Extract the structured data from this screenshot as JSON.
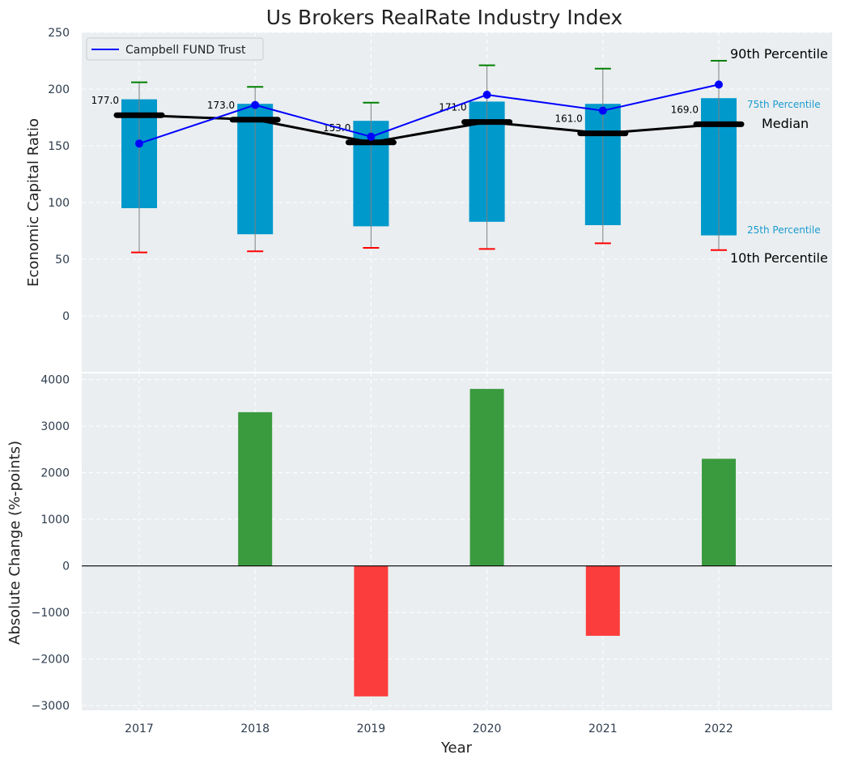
{
  "chart_data": [
    {
      "type": "box-percentile",
      "title": "Us Brokers RealRate Industry Index",
      "xlabel": "",
      "ylabel": "Economic Capital Ratio",
      "ylim": [
        -50,
        250
      ],
      "yticks": [
        0,
        50,
        100,
        150,
        200,
        250
      ],
      "categories": [
        "2017",
        "2018",
        "2019",
        "2020",
        "2021",
        "2022"
      ],
      "p10": [
        56,
        57,
        60,
        59,
        64,
        58
      ],
      "p25": [
        95,
        72,
        79,
        83,
        80,
        71
      ],
      "median": [
        177,
        173,
        153,
        171,
        161,
        169
      ],
      "median_labels": [
        "177.0",
        "173.0",
        "153.0",
        "171.0",
        "161.0",
        "169.0"
      ],
      "p75": [
        191,
        187,
        172,
        189,
        187,
        192
      ],
      "p90": [
        206,
        202,
        188,
        221,
        218,
        225
      ],
      "series": [
        {
          "name": "Campbell FUND Trust",
          "values": [
            152,
            186,
            158,
            195,
            181,
            204
          ],
          "color": "#0000ff"
        }
      ],
      "annotations": {
        "p90": "90th Percentile",
        "p75": "75th Percentile",
        "median": "Median",
        "p25": "25th Percentile",
        "p10": "10th Percentile"
      },
      "legend": {
        "position": "top-left",
        "entries": [
          "Campbell FUND Trust"
        ]
      },
      "colors": {
        "box": "#0099cc",
        "median": "#000000",
        "p90_cap": "#008000",
        "p10_cap": "#ff0000",
        "series": "#0000ff"
      },
      "grid": true
    },
    {
      "type": "bar",
      "xlabel": "Year",
      "ylabel": "Absolute Change (%-points)",
      "ylim": [
        -3100,
        4150
      ],
      "yticks": [
        -3000,
        -2000,
        -1000,
        0,
        1000,
        2000,
        3000,
        4000
      ],
      "ytick_labels": [
        "−3000",
        "−2000",
        "−1000",
        "0",
        "1000",
        "2000",
        "3000",
        "4000"
      ],
      "categories": [
        "2017",
        "2018",
        "2019",
        "2020",
        "2021",
        "2022"
      ],
      "values": [
        0,
        3300,
        -2800,
        3800,
        -1500,
        2300
      ],
      "colors": {
        "positive": "#3a9a3e",
        "negative": "#fc3d3d"
      },
      "grid": true
    }
  ]
}
